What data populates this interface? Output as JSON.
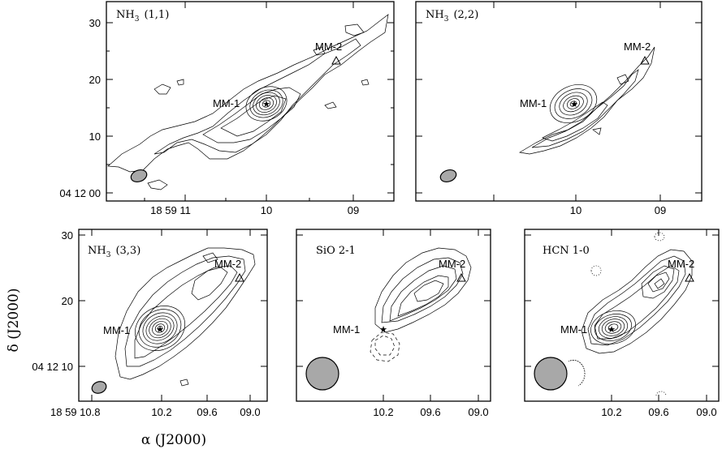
{
  "chart_data": [
    {
      "type": "contour",
      "title": "NH3 (1,1)",
      "title_main": "NH",
      "title_sub": "3",
      "title_rest": "(1,1)",
      "x_ticks": [
        "18 59 11",
        "10",
        "09"
      ],
      "y_ticks": [
        "30",
        "20",
        "10",
        "04 12 00"
      ],
      "sources": [
        {
          "name": "MM-1",
          "marker": "star",
          "ra": "18 59 10.0",
          "dec": "04 12 15.5"
        },
        {
          "name": "MM-2",
          "marker": "triangle",
          "ra": "18 59 09.3",
          "dec": "04 12 23"
        }
      ]
    },
    {
      "type": "contour",
      "title": "NH3 (2,2)",
      "title_main": "NH",
      "title_sub": "3",
      "title_rest": "(2,2)",
      "x_ticks": [
        "10",
        "09"
      ],
      "y_ticks": [],
      "sources": [
        {
          "name": "MM-1",
          "marker": "star"
        },
        {
          "name": "MM-2",
          "marker": "triangle"
        }
      ]
    },
    {
      "type": "contour",
      "title": "NH3 (3,3)",
      "title_main": "NH",
      "title_sub": "3",
      "title_rest": "(3,3)",
      "x_ticks": [
        "18 59 10.8",
        "10.2",
        "09.6",
        "09.0"
      ],
      "y_ticks": [
        "30",
        "20",
        "04 12 10"
      ],
      "sources": [
        {
          "name": "MM-1",
          "marker": "star"
        },
        {
          "name": "MM-2",
          "marker": "triangle"
        }
      ]
    },
    {
      "type": "contour",
      "title": "SiO 2-1",
      "x_ticks": [
        "10.2",
        "09.6",
        "09.0"
      ],
      "y_ticks": [],
      "sources": [
        {
          "name": "MM-1",
          "marker": "star"
        },
        {
          "name": "MM-2",
          "marker": "triangle"
        }
      ]
    },
    {
      "type": "contour",
      "title": "HCN 1-0",
      "x_ticks": [
        "10.2",
        "09.6",
        "09.0"
      ],
      "y_ticks": [],
      "sources": [
        {
          "name": "MM-1",
          "marker": "star"
        },
        {
          "name": "MM-2",
          "marker": "triangle"
        }
      ]
    }
  ],
  "axes": {
    "xlabel": "α (J2000)",
    "ylabel": "δ (J2000)"
  }
}
